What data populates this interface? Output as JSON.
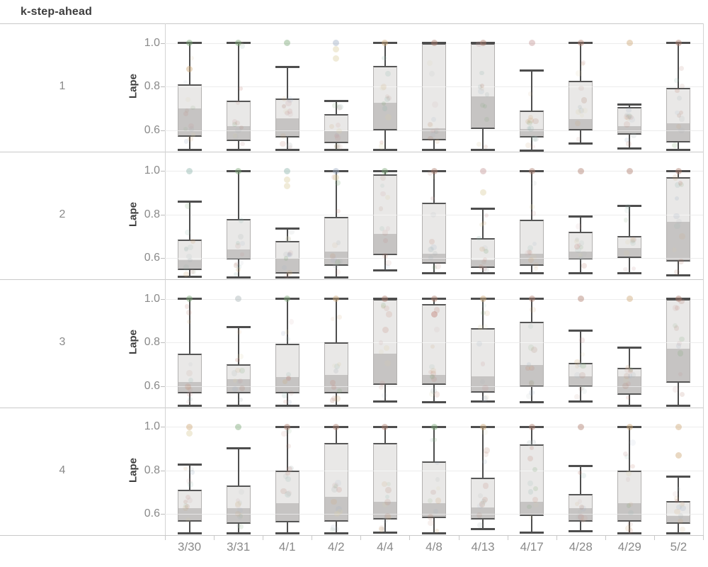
{
  "title": "k-step-ahead",
  "chart_data": {
    "type": "boxplot",
    "facet_label": "k-step-ahead",
    "ylabel": "Lape",
    "layout": "4 stacked facet panels (k = 1..4), shared x axis of dates, grid on",
    "ylim": [
      0.503,
      1.09
    ],
    "yticks": [
      {
        "v": 1.0,
        "label": "1.0"
      },
      {
        "v": 0.8,
        "label": "0.8"
      },
      {
        "v": 0.6,
        "label": "0.6"
      }
    ],
    "categories": [
      "3/30",
      "3/31",
      "4/1",
      "4/2",
      "4/4",
      "4/8",
      "4/13",
      "4/17",
      "4/28",
      "4/29",
      "5/2"
    ],
    "rows": [
      {
        "k": "1",
        "boxes": [
          {
            "low": 0.51,
            "q1": 0.57,
            "med": 0.7,
            "q3": 0.81,
            "high": 1.0,
            "out": [
              [
                1.0,
                "green"
              ],
              [
                0.88,
                "tan"
              ]
            ]
          },
          {
            "low": 0.51,
            "q1": 0.55,
            "med": 0.62,
            "q3": 0.735,
            "high": 1.0,
            "out": [
              [
                1.0,
                "green"
              ]
            ]
          },
          {
            "low": 0.51,
            "q1": 0.565,
            "med": 0.655,
            "q3": 0.745,
            "high": 0.89,
            "out": [
              [
                1.0,
                "green"
              ]
            ]
          },
          {
            "low": 0.51,
            "q1": 0.54,
            "med": 0.595,
            "q3": 0.675,
            "high": 0.735,
            "out": [
              [
                1.0,
                "blue"
              ],
              [
                0.97,
                "cream"
              ],
              [
                0.93,
                "cream"
              ]
            ]
          },
          {
            "low": 0.51,
            "q1": 0.6,
            "med": 0.725,
            "q3": 0.895,
            "high": 1.0,
            "out": [
              [
                1.0,
                "tan"
              ]
            ]
          },
          {
            "low": 0.51,
            "q1": 0.555,
            "med": 0.61,
            "q3": 1.0,
            "high": 1.0,
            "out": [
              [
                1.0,
                "brown"
              ]
            ]
          },
          {
            "low": 0.51,
            "q1": 0.605,
            "med": 0.755,
            "q3": 1.0,
            "high": 1.0,
            "out": [
              [
                1.0,
                "brown"
              ]
            ]
          },
          {
            "low": 0.505,
            "q1": 0.565,
            "med": 0.605,
            "q3": 0.69,
            "high": 0.875,
            "out": [
              [
                1.0,
                "pink"
              ]
            ]
          },
          {
            "low": 0.54,
            "q1": 0.6,
            "med": 0.65,
            "q3": 0.825,
            "high": 1.0,
            "out": [
              [
                1.0,
                "brown"
              ]
            ]
          },
          {
            "low": 0.515,
            "q1": 0.58,
            "med": 0.62,
            "q3": 0.705,
            "high": 0.717,
            "out": [
              [
                1.0,
                "tan"
              ]
            ]
          },
          {
            "low": 0.51,
            "q1": 0.545,
            "med": 0.63,
            "q3": 0.795,
            "high": 1.0,
            "out": [
              [
                1.0,
                "brown"
              ]
            ]
          }
        ]
      },
      {
        "k": "2",
        "boxes": [
          {
            "low": 0.515,
            "q1": 0.545,
            "med": 0.59,
            "q3": 0.685,
            "high": 0.86,
            "out": [
              [
                1.0,
                "teal"
              ]
            ]
          },
          {
            "low": 0.51,
            "q1": 0.595,
            "med": 0.64,
            "q3": 0.78,
            "high": 1.0,
            "out": [
              [
                1.0,
                "green"
              ]
            ]
          },
          {
            "low": 0.51,
            "q1": 0.53,
            "med": 0.6,
            "q3": 0.68,
            "high": 0.735,
            "out": [
              [
                1.0,
                "teal"
              ],
              [
                0.96,
                "cream"
              ],
              [
                0.93,
                "cream"
              ]
            ]
          },
          {
            "low": 0.51,
            "q1": 0.565,
            "med": 0.63,
            "q3": 0.79,
            "high": 1.0,
            "out": [
              [
                1.0,
                "blue"
              ],
              [
                0.97,
                "cream"
              ]
            ]
          },
          {
            "low": 0.545,
            "q1": 0.615,
            "med": 0.71,
            "q3": 0.985,
            "high": 1.0,
            "out": [
              [
                1.0,
                "green"
              ]
            ]
          },
          {
            "low": 0.53,
            "q1": 0.575,
            "med": 0.62,
            "q3": 0.855,
            "high": 1.0,
            "out": [
              [
                1.0,
                "brown"
              ]
            ]
          },
          {
            "low": 0.53,
            "q1": 0.555,
            "med": 0.59,
            "q3": 0.69,
            "high": 0.825,
            "out": [
              [
                1.0,
                "pink"
              ],
              [
                0.9,
                "cream"
              ]
            ]
          },
          {
            "low": 0.53,
            "q1": 0.565,
            "med": 0.62,
            "q3": 0.775,
            "high": 1.0,
            "out": [
              [
                1.0,
                "brown"
              ]
            ]
          },
          {
            "low": 0.53,
            "q1": 0.595,
            "med": 0.63,
            "q3": 0.72,
            "high": 0.79,
            "out": [
              [
                1.0,
                "brown"
              ]
            ]
          },
          {
            "low": 0.53,
            "q1": 0.6,
            "med": 0.645,
            "q3": 0.7,
            "high": 0.84,
            "out": [
              [
                1.0,
                "brown"
              ]
            ]
          },
          {
            "low": 0.52,
            "q1": 0.585,
            "med": 0.765,
            "q3": 0.97,
            "high": 1.0,
            "out": [
              [
                1.0,
                "brown"
              ]
            ]
          }
        ]
      },
      {
        "k": "3",
        "boxes": [
          {
            "low": 0.51,
            "q1": 0.565,
            "med": 0.62,
            "q3": 0.75,
            "high": 1.0,
            "out": [
              [
                1.0,
                "green"
              ]
            ]
          },
          {
            "low": 0.51,
            "q1": 0.565,
            "med": 0.63,
            "q3": 0.7,
            "high": 0.87,
            "out": [
              [
                1.0,
                "grey"
              ]
            ]
          },
          {
            "low": 0.51,
            "q1": 0.565,
            "med": 0.64,
            "q3": 0.795,
            "high": 1.0,
            "out": [
              [
                1.0,
                "green"
              ]
            ]
          },
          {
            "low": 0.51,
            "q1": 0.565,
            "med": 0.65,
            "q3": 0.8,
            "high": 1.0,
            "out": [
              [
                1.0,
                "tan"
              ]
            ]
          },
          {
            "low": 0.53,
            "q1": 0.605,
            "med": 0.75,
            "q3": 1.0,
            "high": 1.0,
            "out": [
              [
                1.0,
                "brown"
              ]
            ]
          },
          {
            "low": 0.525,
            "q1": 0.605,
            "med": 0.65,
            "q3": 0.975,
            "high": 1.0,
            "out": [
              [
                1.0,
                "brown"
              ],
              [
                0.93,
                "red"
              ]
            ]
          },
          {
            "low": 0.53,
            "q1": 0.57,
            "med": 0.645,
            "q3": 0.865,
            "high": 1.0,
            "out": [
              [
                1.0,
                "tan"
              ]
            ]
          },
          {
            "low": 0.525,
            "q1": 0.595,
            "med": 0.695,
            "q3": 0.895,
            "high": 1.0,
            "out": [
              [
                1.0,
                "brown"
              ]
            ]
          },
          {
            "low": 0.53,
            "q1": 0.595,
            "med": 0.645,
            "q3": 0.705,
            "high": 0.855,
            "out": [
              [
                1.0,
                "brown"
              ]
            ]
          },
          {
            "low": 0.51,
            "q1": 0.56,
            "med": 0.645,
            "q3": 0.685,
            "high": 0.775,
            "out": [
              [
                1.0,
                "tan"
              ]
            ]
          },
          {
            "low": 0.51,
            "q1": 0.615,
            "med": 0.77,
            "q3": 1.0,
            "high": 1.0,
            "out": [
              [
                1.0,
                "brown"
              ]
            ]
          }
        ]
      },
      {
        "k": "4",
        "boxes": [
          {
            "low": 0.51,
            "q1": 0.565,
            "med": 0.625,
            "q3": 0.71,
            "high": 0.825,
            "out": [
              [
                1.0,
                "tan"
              ],
              [
                0.97,
                "cream"
              ]
            ]
          },
          {
            "low": 0.51,
            "q1": 0.555,
            "med": 0.625,
            "q3": 0.73,
            "high": 0.9,
            "out": [
              [
                1.0,
                "green"
              ]
            ]
          },
          {
            "low": 0.51,
            "q1": 0.56,
            "med": 0.65,
            "q3": 0.8,
            "high": 1.0,
            "out": [
              [
                1.0,
                "brown"
              ]
            ]
          },
          {
            "low": 0.51,
            "q1": 0.565,
            "med": 0.68,
            "q3": 0.925,
            "high": 1.0,
            "out": [
              [
                1.0,
                "brown"
              ]
            ]
          },
          {
            "low": 0.515,
            "q1": 0.575,
            "med": 0.655,
            "q3": 0.925,
            "high": 1.0,
            "out": [
              [
                1.0,
                "brown"
              ]
            ]
          },
          {
            "low": 0.51,
            "q1": 0.58,
            "med": 0.65,
            "q3": 0.84,
            "high": 1.0,
            "out": [
              [
                1.0,
                "green"
              ]
            ]
          },
          {
            "low": 0.53,
            "q1": 0.575,
            "med": 0.63,
            "q3": 0.765,
            "high": 1.0,
            "out": [
              [
                1.0,
                "tan"
              ]
            ]
          },
          {
            "low": 0.515,
            "q1": 0.59,
            "med": 0.655,
            "q3": 0.92,
            "high": 1.0,
            "out": [
              [
                1.0,
                "brown"
              ]
            ]
          },
          {
            "low": 0.52,
            "q1": 0.565,
            "med": 0.625,
            "q3": 0.69,
            "high": 0.82,
            "out": [
              [
                1.0,
                "brown"
              ]
            ]
          },
          {
            "low": 0.51,
            "q1": 0.565,
            "med": 0.65,
            "q3": 0.8,
            "high": 1.0,
            "out": [
              [
                1.0,
                "tan"
              ]
            ]
          },
          {
            "low": 0.51,
            "q1": 0.555,
            "med": 0.59,
            "q3": 0.66,
            "high": 0.77,
            "out": [
              [
                1.0,
                "tan"
              ],
              [
                0.87,
                "tan"
              ]
            ]
          }
        ]
      }
    ],
    "palette": {
      "green": "#7da877",
      "teal": "#8fb5ad",
      "blue": "#9fb0c6",
      "tan": "#cfa878",
      "brown": "#b07f6e",
      "red": "#c08377",
      "cream": "#ddd2a8",
      "grey": "#a9b4b6",
      "pink": "#c69a9a"
    },
    "jitter": {
      "count": 12,
      "base_alpha": 0.1,
      "seed": 13
    },
    "style": {
      "box_light": "#e9e8e7",
      "box_dark": "#c6c4c3",
      "line_dark": "#4e4e4e",
      "grid": "#ececec",
      "separator": "#c9c9c9",
      "text_grey": "#8a8a8a",
      "text_dark": "#3d3d3d"
    }
  }
}
